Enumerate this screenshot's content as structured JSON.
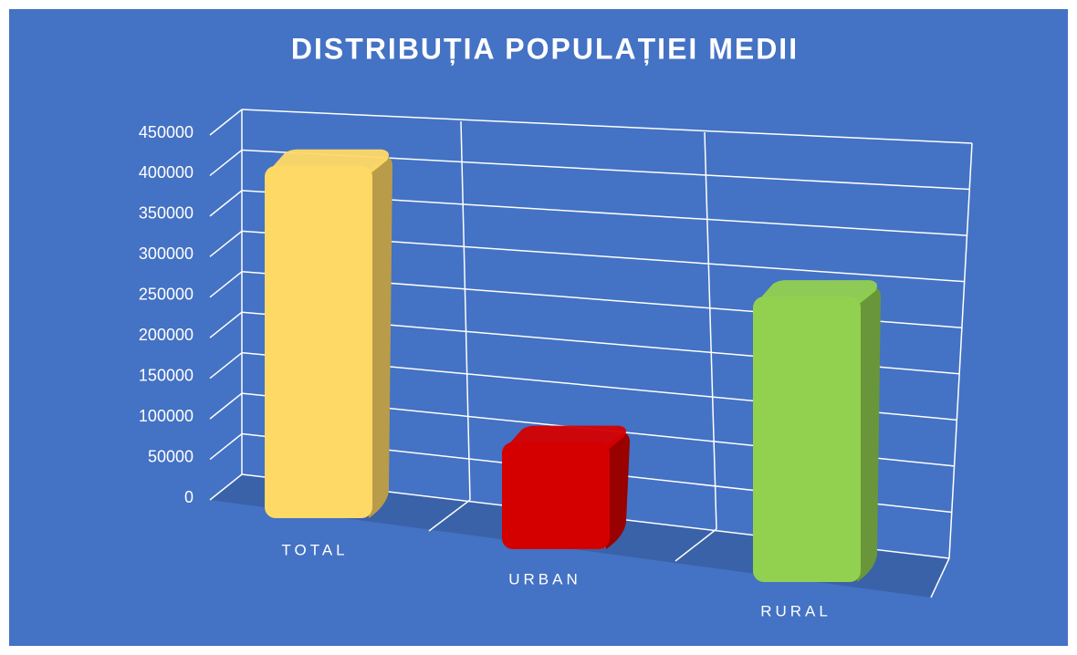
{
  "chart_data": {
    "type": "bar3d",
    "title": "DISTRIBUȚIA POPULAȚIEI MEDII",
    "categories": [
      "TOTAL",
      "URBAN",
      "RURAL"
    ],
    "values": [
      395000,
      120000,
      320000
    ],
    "colors": [
      "#ffd966",
      "#d40000",
      "#92d050"
    ],
    "ylim": [
      0,
      450000
    ],
    "yticks": [
      0,
      50000,
      100000,
      150000,
      200000,
      250000,
      300000,
      350000,
      400000,
      450000
    ],
    "grid": true
  }
}
